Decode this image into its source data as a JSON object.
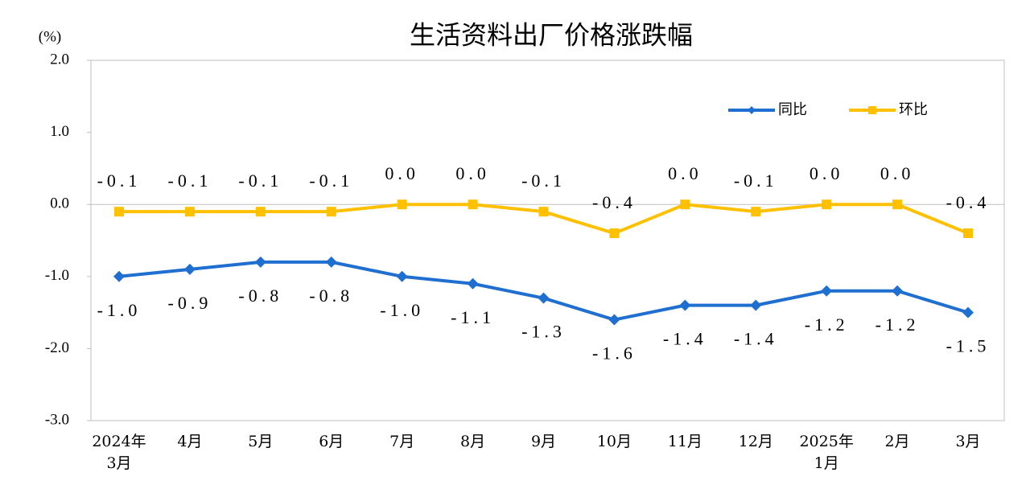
{
  "chart_data": {
    "type": "line",
    "title": "生活资料出厂价格涨跌幅",
    "y_label": "(%)",
    "categories": [
      "2024年\n3月",
      "4月",
      "5月",
      "6月",
      "7月",
      "8月",
      "9月",
      "10月",
      "11月",
      "12月",
      "2025年\n1月",
      "2月",
      "3月"
    ],
    "series": [
      {
        "name": "同比",
        "color": "#1f6fd0",
        "marker": "diamond",
        "values": [
          -1.0,
          -0.9,
          -0.8,
          -0.8,
          -1.0,
          -1.1,
          -1.3,
          -1.6,
          -1.4,
          -1.4,
          -1.2,
          -1.2,
          -1.5
        ],
        "value_labels": [
          "-1.0",
          "-0.9",
          "-0.8",
          "-0.8",
          "-1.0",
          "-1.1",
          "-1.3",
          "-1.6",
          "-1.4",
          "-1.4",
          "-1.2",
          "-1.2",
          "-1.5"
        ],
        "label_position": "below"
      },
      {
        "name": "环比",
        "color": "#ffc000",
        "marker": "square",
        "values": [
          -0.1,
          -0.1,
          -0.1,
          -0.1,
          0.0,
          0.0,
          -0.1,
          -0.4,
          0.0,
          -0.1,
          0.0,
          0.0,
          -0.4
        ],
        "value_labels": [
          "-0.1",
          "-0.1",
          "-0.1",
          "-0.1",
          "0.0",
          "0.0",
          "-0.1",
          "-0.4",
          "0.0",
          "-0.1",
          "0.0",
          "0.0",
          "-0.4"
        ],
        "label_position": "above"
      }
    ],
    "ylim": [
      -3.0,
      2.0
    ],
    "yticks": [
      {
        "value": -3.0,
        "label": "-3.0"
      },
      {
        "value": -2.0,
        "label": "-2.0"
      },
      {
        "value": -1.0,
        "label": "-1.0"
      },
      {
        "value": 0.0,
        "label": "0.0"
      },
      {
        "value": 1.0,
        "label": "1.0"
      },
      {
        "value": 2.0,
        "label": "2.0"
      }
    ],
    "legend": "upper right"
  }
}
